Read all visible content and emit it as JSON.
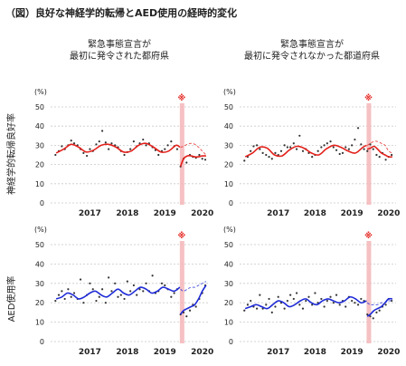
{
  "figure": {
    "title": "（図）良好な神経学的転帰とAED使用の経時的変化",
    "marker": "※",
    "column_titles": [
      [
        "緊急事態宣言が",
        "最初に発令された都府県"
      ],
      [
        "緊急事態宣言が",
        "最初に発令されなかった都道府県"
      ]
    ],
    "row_labels": [
      "神経学的転帰良好率",
      "AED使用率"
    ],
    "y_unit": "(%)",
    "y_ticks": [
      "50",
      "40",
      "30",
      "20",
      "10",
      "0"
    ],
    "x_ticks": [
      "2017",
      "2018",
      "2019",
      "2020"
    ]
  },
  "colors": {
    "outcome": "#e3211b",
    "aed": "#1f2bd6",
    "emergency_band": "#f4b6b8",
    "marker": "#e3211b",
    "grid": "#c9c9c9",
    "points": "#333333"
  },
  "chart_data": [
    {
      "type": "line",
      "panel": "top-left",
      "title": "緊急事態宣言が 最初に発令された都府県",
      "ylabel": "神経学的転帰良好率",
      "yunit": "(%)",
      "ylim": [
        0,
        50
      ],
      "xlim": [
        2016.5,
        2020.7
      ],
      "x_ticks": [
        2017,
        2018,
        2019,
        2020
      ],
      "grid": true,
      "emergency_period": [
        2019.9,
        2020.0
      ],
      "series": [
        {
          "style": "solid",
          "x": [
            2016.6,
            2016.8,
            2017.0,
            2017.2,
            2017.4,
            2017.6,
            2017.8,
            2018.0,
            2018.2,
            2018.4,
            2018.6,
            2018.8,
            2019.0,
            2019.2,
            2019.4,
            2019.6,
            2019.8,
            2019.9
          ],
          "y": [
            26,
            28,
            30.5,
            29,
            26.5,
            27.5,
            30,
            30.5,
            29,
            26.5,
            27,
            30,
            31,
            29,
            26.5,
            27,
            30,
            29
          ]
        },
        {
          "style": "solid",
          "x": [
            2019.92,
            2020.0,
            2020.1,
            2020.2,
            2020.3,
            2020.4,
            2020.5,
            2020.6
          ],
          "y": [
            19,
            23,
            24.5,
            24.5,
            24,
            24,
            24.5,
            24.5
          ]
        },
        {
          "style": "dashed",
          "x": [
            2019.92,
            2020.0,
            2020.1,
            2020.2,
            2020.3,
            2020.4,
            2020.5,
            2020.6
          ],
          "y": [
            29,
            29.5,
            30.5,
            31,
            30.5,
            29,
            27,
            25
          ]
        }
      ],
      "points": {
        "x": [
          2016.58,
          2016.67,
          2016.75,
          2016.83,
          2016.92,
          2017.0,
          2017.08,
          2017.17,
          2017.25,
          2017.33,
          2017.42,
          2017.5,
          2017.58,
          2017.67,
          2017.75,
          2017.83,
          2017.92,
          2018.0,
          2018.08,
          2018.17,
          2018.25,
          2018.33,
          2018.42,
          2018.5,
          2018.58,
          2018.67,
          2018.75,
          2018.83,
          2018.92,
          2019.0,
          2019.08,
          2019.17,
          2019.25,
          2019.33,
          2019.42,
          2019.5,
          2019.58,
          2019.67,
          2019.75,
          2019.83,
          2019.92,
          2020.0,
          2020.08,
          2020.17,
          2020.25,
          2020.33,
          2020.42,
          2020.5,
          2020.58
        ],
        "y": [
          25,
          27,
          29.5,
          28,
          30,
          32.5,
          31,
          30,
          28,
          26,
          24.5,
          28,
          27,
          30.5,
          32,
          37.5,
          31.5,
          28,
          31,
          30,
          29,
          27,
          25,
          26.5,
          28,
          32,
          29.5,
          31,
          33,
          30,
          31,
          29,
          27.5,
          25,
          27,
          28,
          30,
          32,
          29.5,
          28,
          19,
          23,
          21,
          25,
          24,
          23.5,
          25,
          23,
          22.5
        ]
      }
    },
    {
      "type": "line",
      "panel": "top-right",
      "title": "緊急事態宣言が 最初に発令されなかった都道府県",
      "ylabel": "",
      "yunit": "(%)",
      "ylim": [
        0,
        50
      ],
      "xlim": [
        2016.5,
        2020.7
      ],
      "x_ticks": [
        2017,
        2018,
        2019,
        2020
      ],
      "grid": true,
      "emergency_period": [
        2019.9,
        2020.0
      ],
      "series": [
        {
          "style": "solid",
          "x": [
            2016.6,
            2016.8,
            2017.0,
            2017.2,
            2017.4,
            2017.6,
            2017.8,
            2018.0,
            2018.2,
            2018.4,
            2018.6,
            2018.8,
            2019.0,
            2019.2,
            2019.4,
            2019.6,
            2019.8,
            2019.9
          ],
          "y": [
            24,
            26,
            29,
            28.5,
            25,
            24.5,
            27.5,
            29.5,
            28.5,
            26,
            25,
            28,
            30,
            29,
            27,
            26,
            29,
            30
          ]
        },
        {
          "style": "solid",
          "x": [
            2019.92,
            2020.0,
            2020.1,
            2020.2,
            2020.3,
            2020.4,
            2020.5,
            2020.6
          ],
          "y": [
            28,
            28.5,
            29.5,
            28,
            26,
            25,
            24,
            24
          ]
        },
        {
          "style": "dashed",
          "x": [
            2019.92,
            2020.0,
            2020.1,
            2020.2,
            2020.3,
            2020.4,
            2020.5,
            2020.6
          ],
          "y": [
            30,
            31,
            32,
            32,
            31,
            30,
            27,
            26
          ]
        }
      ],
      "points": {
        "x": [
          2016.58,
          2016.67,
          2016.75,
          2016.83,
          2016.92,
          2017.0,
          2017.08,
          2017.17,
          2017.25,
          2017.33,
          2017.42,
          2017.5,
          2017.58,
          2017.67,
          2017.75,
          2017.83,
          2017.92,
          2018.0,
          2018.08,
          2018.17,
          2018.25,
          2018.33,
          2018.42,
          2018.5,
          2018.58,
          2018.67,
          2018.75,
          2018.83,
          2018.92,
          2019.0,
          2019.08,
          2019.17,
          2019.25,
          2019.33,
          2019.42,
          2019.5,
          2019.58,
          2019.67,
          2019.75,
          2019.83,
          2019.92,
          2020.0,
          2020.08,
          2020.17,
          2020.25,
          2020.33,
          2020.42,
          2020.5,
          2020.58
        ],
        "y": [
          22,
          24,
          27,
          29.5,
          30,
          28,
          26,
          25,
          24,
          23,
          26,
          25,
          27,
          30,
          29,
          29,
          31,
          28,
          35,
          27,
          28,
          26,
          24,
          25,
          27,
          29,
          30,
          31,
          32,
          29,
          27.5,
          25.5,
          26,
          29,
          28,
          30,
          33,
          39,
          30.5,
          28,
          27,
          30.5,
          28,
          25,
          24,
          26,
          22.5,
          24,
          25
        ]
      }
    },
    {
      "type": "line",
      "panel": "bottom-left",
      "title": "",
      "ylabel": "AED使用率",
      "yunit": "(%)",
      "ylim": [
        0,
        50
      ],
      "xlim": [
        2016.5,
        2020.7
      ],
      "x_ticks": [
        2017,
        2018,
        2019,
        2020
      ],
      "grid": true,
      "emergency_period": [
        2019.9,
        2020.0
      ],
      "series": [
        {
          "style": "solid",
          "x": [
            2016.6,
            2016.75,
            2016.9,
            2017.05,
            2017.2,
            2017.35,
            2017.5,
            2017.65,
            2017.8,
            2017.95,
            2018.1,
            2018.25,
            2018.4,
            2018.55,
            2018.7,
            2018.85,
            2019.0,
            2019.15,
            2019.3,
            2019.45,
            2019.6,
            2019.75,
            2019.9
          ],
          "y": [
            22,
            23,
            25,
            24,
            22,
            23,
            25,
            26,
            24,
            23,
            25,
            27,
            25,
            24,
            26,
            28,
            27,
            25,
            26,
            28,
            27,
            26,
            28
          ]
        },
        {
          "style": "solid",
          "x": [
            2019.92,
            2020.0,
            2020.1,
            2020.2,
            2020.3,
            2020.4,
            2020.5,
            2020.6
          ],
          "y": [
            14,
            16,
            17,
            18,
            19,
            22,
            26,
            29
          ]
        },
        {
          "style": "dashed",
          "x": [
            2019.92,
            2020.0,
            2020.1,
            2020.2,
            2020.3,
            2020.4,
            2020.5,
            2020.6
          ],
          "y": [
            27,
            26,
            27,
            28,
            28,
            29,
            30,
            31
          ]
        }
      ],
      "points": {
        "x": [
          2016.58,
          2016.67,
          2016.75,
          2016.83,
          2016.92,
          2017.0,
          2017.08,
          2017.17,
          2017.25,
          2017.33,
          2017.42,
          2017.5,
          2017.58,
          2017.67,
          2017.75,
          2017.83,
          2017.92,
          2018.0,
          2018.08,
          2018.17,
          2018.25,
          2018.33,
          2018.42,
          2018.5,
          2018.58,
          2018.67,
          2018.75,
          2018.83,
          2018.92,
          2019.0,
          2019.08,
          2019.17,
          2019.25,
          2019.33,
          2019.42,
          2019.5,
          2019.58,
          2019.67,
          2019.75,
          2019.83,
          2019.92,
          2020.0,
          2020.08,
          2020.17,
          2020.25,
          2020.33,
          2020.42,
          2020.5,
          2020.58
        ],
        "y": [
          21,
          24,
          26,
          22,
          27,
          23,
          25,
          22,
          32,
          20,
          24,
          30,
          27,
          21,
          23,
          27,
          20,
          33,
          26,
          30,
          23,
          24,
          22,
          31,
          26,
          29,
          24,
          27,
          26,
          30,
          26,
          34,
          25,
          26,
          30,
          29,
          27,
          23,
          25,
          27,
          14,
          15,
          13,
          16,
          19,
          18,
          22,
          25,
          29
        ]
      }
    },
    {
      "type": "line",
      "panel": "bottom-right",
      "title": "",
      "ylabel": "",
      "yunit": "(%)",
      "ylim": [
        0,
        50
      ],
      "xlim": [
        2016.5,
        2020.7
      ],
      "x_ticks": [
        2017,
        2018,
        2019,
        2020
      ],
      "grid": true,
      "emergency_period": [
        2019.9,
        2020.0
      ],
      "series": [
        {
          "style": "solid",
          "x": [
            2016.6,
            2016.75,
            2016.9,
            2017.05,
            2017.2,
            2017.35,
            2017.5,
            2017.65,
            2017.8,
            2017.95,
            2018.1,
            2018.25,
            2018.4,
            2018.55,
            2018.7,
            2018.85,
            2019.0,
            2019.15,
            2019.3,
            2019.45,
            2019.6,
            2019.75,
            2019.9
          ],
          "y": [
            17,
            18,
            19,
            18,
            17,
            19,
            21,
            20,
            18,
            19,
            21,
            22,
            20,
            19,
            21,
            22,
            21,
            20,
            21,
            23,
            22,
            20,
            21
          ]
        },
        {
          "style": "solid",
          "x": [
            2019.92,
            2020.0,
            2020.1,
            2020.2,
            2020.3,
            2020.4,
            2020.5,
            2020.6
          ],
          "y": [
            13,
            14,
            16,
            17,
            18,
            20,
            22,
            22
          ]
        },
        {
          "style": "dashed",
          "x": [
            2019.92,
            2020.0,
            2020.1,
            2020.2,
            2020.3,
            2020.4,
            2020.5,
            2020.6
          ],
          "y": [
            20,
            19,
            19,
            19,
            20,
            20,
            21,
            21
          ]
        }
      ],
      "points": {
        "x": [
          2016.58,
          2016.67,
          2016.75,
          2016.83,
          2016.92,
          2017.0,
          2017.08,
          2017.17,
          2017.25,
          2017.33,
          2017.42,
          2017.5,
          2017.58,
          2017.67,
          2017.75,
          2017.83,
          2017.92,
          2018.0,
          2018.08,
          2018.17,
          2018.25,
          2018.33,
          2018.42,
          2018.5,
          2018.58,
          2018.67,
          2018.75,
          2018.83,
          2018.92,
          2019.0,
          2019.08,
          2019.17,
          2019.25,
          2019.33,
          2019.42,
          2019.5,
          2019.58,
          2019.67,
          2019.75,
          2019.83,
          2019.92,
          2020.0,
          2020.08,
          2020.17,
          2020.25,
          2020.33,
          2020.42,
          2020.5,
          2020.58
        ],
        "y": [
          16,
          19,
          21,
          18,
          17,
          24,
          17,
          19,
          22,
          15,
          18,
          23,
          20,
          17,
          21,
          24,
          22,
          25,
          19,
          17,
          21,
          23,
          19,
          25,
          20,
          22,
          18,
          21,
          23,
          20,
          24,
          19,
          21,
          18,
          23,
          21,
          20,
          19,
          22,
          21,
          14,
          13,
          12,
          15,
          16,
          18,
          19,
          22,
          21
        ]
      }
    }
  ]
}
